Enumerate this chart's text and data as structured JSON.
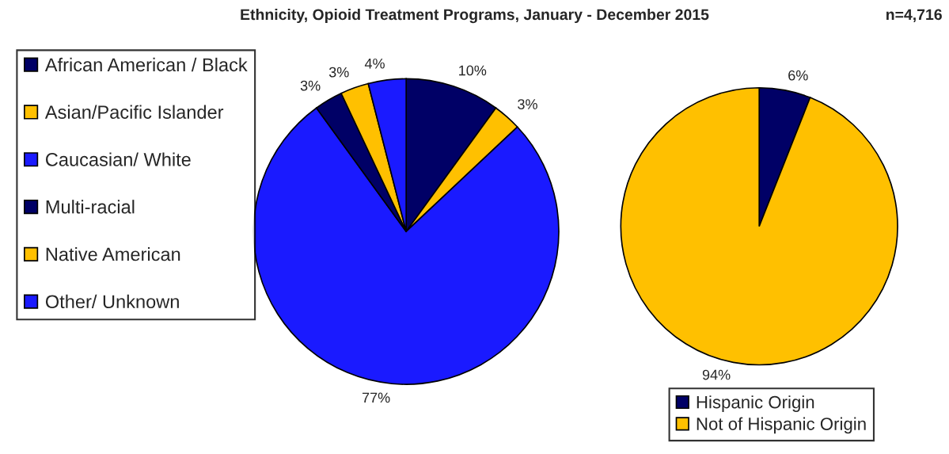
{
  "chart_data": [
    {
      "type": "pie",
      "title": "Ethnicity, Opioid Treatment Programs, January - December 2015",
      "categories": [
        "African American / Black",
        "Asian/Pacific Islander",
        "Caucasian/ White",
        "Multi-racial",
        "Native American",
        "Other/ Unknown"
      ],
      "values": [
        10,
        3,
        77,
        3,
        3,
        4
      ],
      "colors": [
        "#000066",
        "#ffc000",
        "#1a1aff",
        "#000066",
        "#ffc000",
        "#1a1aff"
      ],
      "value_labels": [
        "10%",
        "3%",
        "77%",
        "3%",
        "3%",
        "4%"
      ],
      "legend": "left"
    },
    {
      "type": "pie",
      "annotations": [
        "n=4,716"
      ],
      "categories": [
        "Hispanic Origin",
        "Not of Hispanic Origin"
      ],
      "values": [
        6,
        94
      ],
      "colors": [
        "#000066",
        "#ffc000"
      ],
      "value_labels": [
        "6%",
        "94%"
      ],
      "legend": "bottom right"
    }
  ]
}
